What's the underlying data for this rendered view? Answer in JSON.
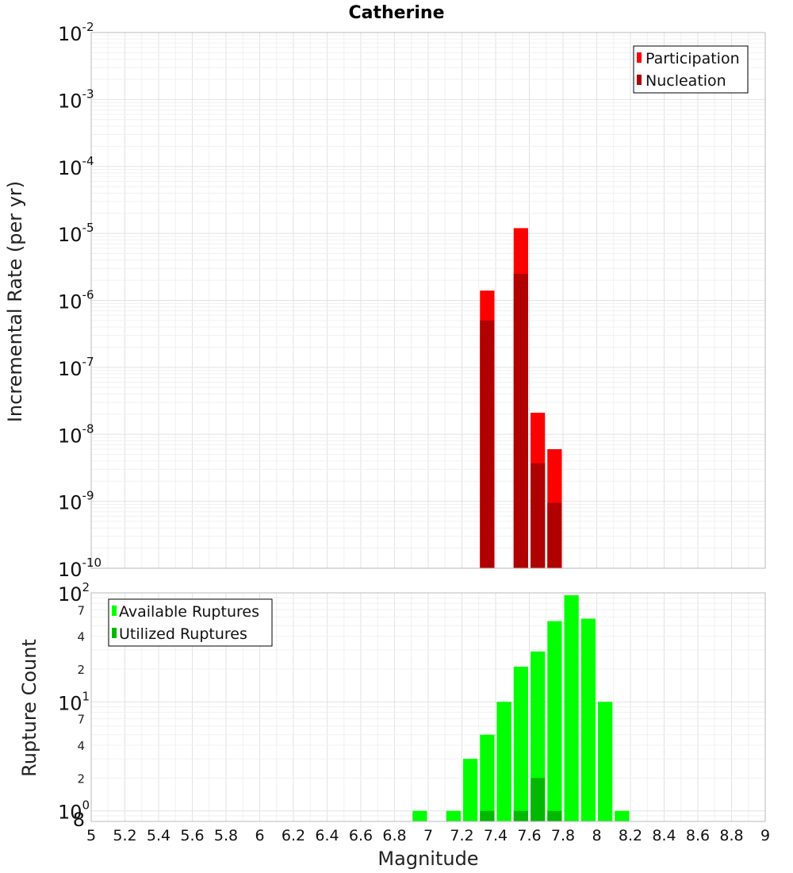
{
  "chart_data": [
    {
      "type": "bar",
      "title": "Catherine",
      "xlabel": "",
      "ylabel": "Incremental Rate (per yr)",
      "yscale": "log",
      "ylim": [
        1e-10,
        0.01
      ],
      "xlim": [
        5,
        9
      ],
      "bin_width": 0.1,
      "y_ticks": [
        {
          "base": "10",
          "exp": "-2",
          "value": 0.01
        },
        {
          "base": "10",
          "exp": "-3",
          "value": 0.001
        },
        {
          "base": "10",
          "exp": "-4",
          "value": 0.0001
        },
        {
          "base": "10",
          "exp": "-5",
          "value": 1e-05
        },
        {
          "base": "10",
          "exp": "-6",
          "value": 1e-06
        },
        {
          "base": "10",
          "exp": "-7",
          "value": 1e-07
        },
        {
          "base": "10",
          "exp": "-8",
          "value": 1e-08
        },
        {
          "base": "10",
          "exp": "-9",
          "value": 1e-09
        },
        {
          "base": "10",
          "exp": "-10",
          "value": 1e-10
        }
      ],
      "legend_position": "top-right",
      "series": [
        {
          "name": "Participation",
          "color": "#ff0000",
          "points": [
            {
              "x": 7.35,
              "y": 1.4e-06
            },
            {
              "x": 7.55,
              "y": 1.2e-05
            },
            {
              "x": 7.65,
              "y": 2.1e-08
            },
            {
              "x": 7.75,
              "y": 6e-09
            }
          ]
        },
        {
          "name": "Nucleation",
          "color": "#b00000",
          "points": [
            {
              "x": 7.35,
              "y": 5e-07
            },
            {
              "x": 7.55,
              "y": 2.5e-06
            },
            {
              "x": 7.65,
              "y": 3.7e-09
            },
            {
              "x": 7.75,
              "y": 9.5e-10
            }
          ]
        }
      ]
    },
    {
      "type": "bar",
      "title": "",
      "xlabel": "Magnitude",
      "ylabel": "Rupture Count",
      "yscale": "log",
      "ylim": [
        0.8,
        100
      ],
      "xlim": [
        5,
        9
      ],
      "bin_width": 0.1,
      "y_ticks": [
        {
          "base": "10",
          "exp": "2",
          "value": 100
        },
        {
          "base": "10",
          "exp": "1",
          "value": 10
        },
        {
          "base": "10",
          "exp": "0",
          "value": 1
        }
      ],
      "y_minor_labels": [
        {
          "label": "7",
          "value": 70
        },
        {
          "label": "4",
          "value": 40
        },
        {
          "label": "2",
          "value": 20
        },
        {
          "label": "7",
          "value": 7
        },
        {
          "label": "4",
          "value": 4
        },
        {
          "label": "2",
          "value": 2
        },
        {
          "label": "8",
          "value": 0.8
        }
      ],
      "x_tick_labels": [
        "5",
        "5.2",
        "5.4",
        "5.6",
        "5.8",
        "6",
        "6.2",
        "6.4",
        "6.6",
        "6.8",
        "7",
        "7.2",
        "7.4",
        "7.6",
        "7.8",
        "8",
        "8.2",
        "8.4",
        "8.6",
        "8.8",
        "9"
      ],
      "legend_position": "top-left",
      "series": [
        {
          "name": "Available Ruptures",
          "color": "#00ff00",
          "points": [
            {
              "x": 6.95,
              "y": 1
            },
            {
              "x": 7.15,
              "y": 1
            },
            {
              "x": 7.25,
              "y": 3
            },
            {
              "x": 7.35,
              "y": 5
            },
            {
              "x": 7.45,
              "y": 10
            },
            {
              "x": 7.55,
              "y": 21
            },
            {
              "x": 7.65,
              "y": 29
            },
            {
              "x": 7.75,
              "y": 55
            },
            {
              "x": 7.85,
              "y": 95
            },
            {
              "x": 7.95,
              "y": 58
            },
            {
              "x": 8.05,
              "y": 10
            },
            {
              "x": 8.15,
              "y": 1
            }
          ]
        },
        {
          "name": "Utilized Ruptures",
          "color": "#00b800",
          "points": [
            {
              "x": 7.35,
              "y": 1
            },
            {
              "x": 7.55,
              "y": 1
            },
            {
              "x": 7.65,
              "y": 2
            },
            {
              "x": 7.75,
              "y": 1
            }
          ]
        }
      ]
    }
  ]
}
